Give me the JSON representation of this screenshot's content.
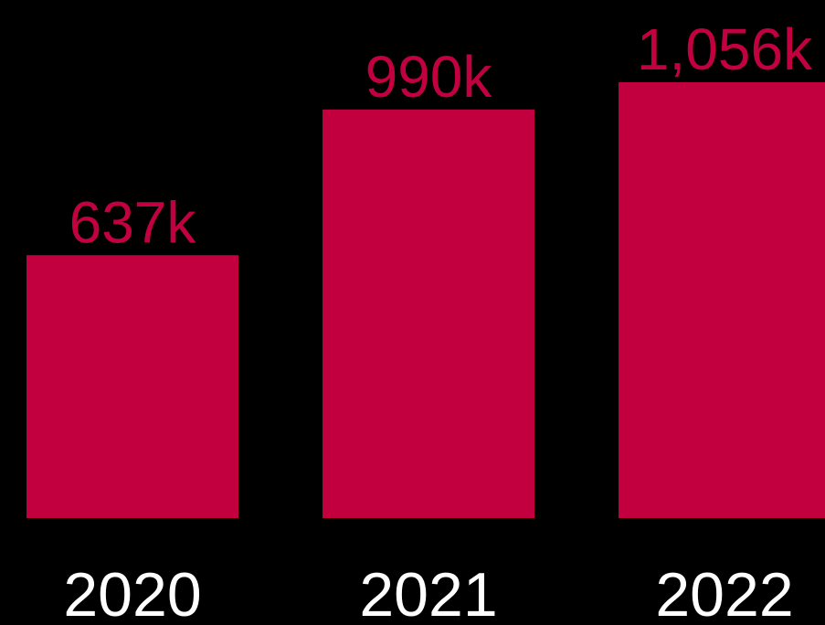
{
  "chart_data": {
    "type": "bar",
    "categories": [
      "2020",
      "2021",
      "2022"
    ],
    "values": [
      637,
      990,
      1056
    ],
    "data_labels": [
      "637k",
      "990k",
      "1,056k"
    ],
    "title": "",
    "xlabel": "",
    "ylabel": "",
    "ylim": [
      0,
      1056
    ],
    "grid": false,
    "colors": {
      "background": "#000000",
      "bar": "#C20040",
      "value_label": "#C20040",
      "tick_label": "#FFFFFF"
    }
  }
}
